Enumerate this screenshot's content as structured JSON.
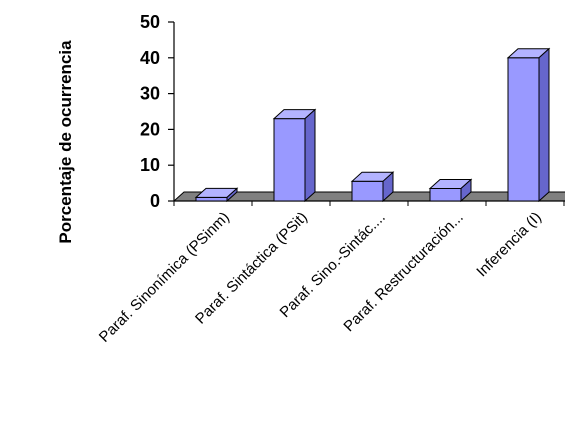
{
  "chart_data": {
    "type": "bar",
    "categories": [
      "Paraf. Sinonímica (PSinm)",
      "Paraf. Sintáctica (PSit)",
      "Paraf. Sino.-Sintác....",
      "Paraf. Restructuración...",
      "Inferencia (I)"
    ],
    "values": [
      1,
      23,
      5.5,
      3.5,
      40
    ],
    "title": "",
    "xlabel": "",
    "ylabel": "Porcentaje de ocurrencia",
    "ylim": [
      0,
      50
    ],
    "yticks": [
      0,
      10,
      20,
      30,
      40,
      50
    ],
    "grid": false,
    "legend": "none",
    "style": "3d-bar",
    "colors": {
      "bar_front": "#9999ff",
      "bar_top": "#b3b3ff",
      "bar_side": "#6666cc",
      "floor": "#808080",
      "axis": "#000000"
    }
  }
}
